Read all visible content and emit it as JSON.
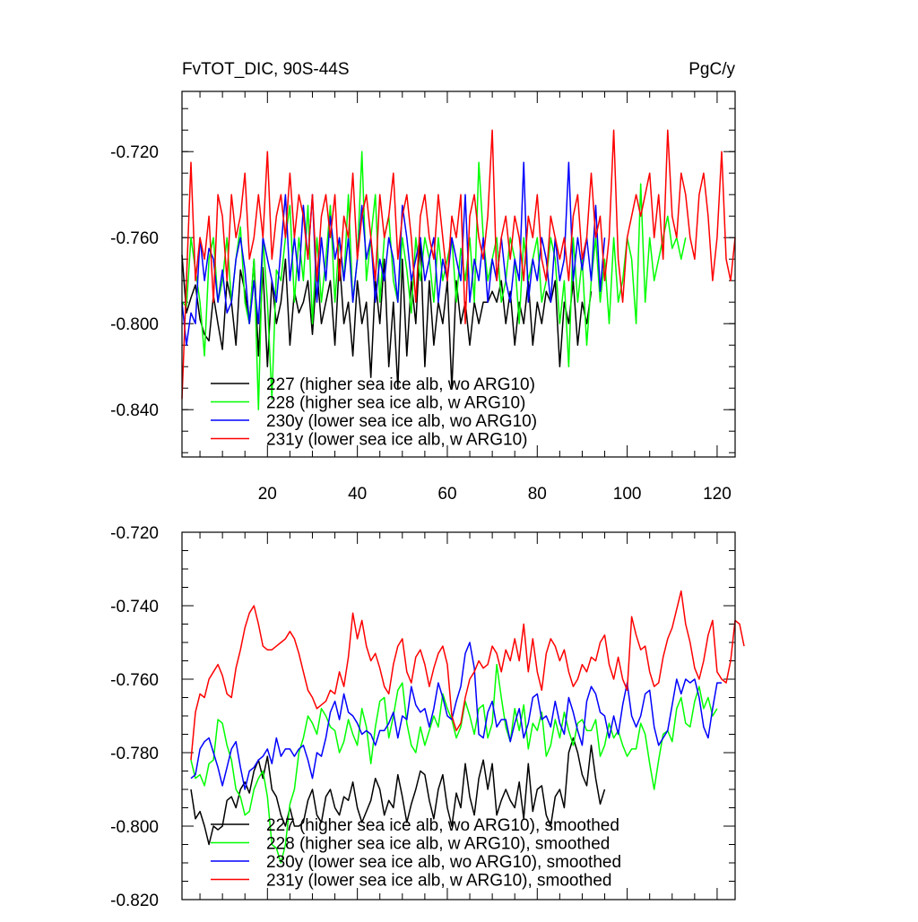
{
  "chart_data": [
    {
      "type": "line",
      "title_left": "FvTOT_DIC, 90S-44S",
      "title_right": "PgC/y",
      "xlim": [
        1,
        124
      ],
      "ylim": [
        -0.862,
        -0.692
      ],
      "yticks": [
        -0.84,
        -0.8,
        -0.76,
        -0.72
      ],
      "ytick_labels": [
        "-0.840",
        "-0.800",
        "-0.760",
        "-0.720"
      ],
      "xticks": [
        20,
        40,
        60,
        80,
        100,
        120
      ],
      "xtick_labels": [
        "20",
        "40",
        "60",
        "80",
        "100",
        "120"
      ],
      "series": [
        {
          "name": "227 (higher sea ice alb, wo ARG10)",
          "color": "#000000",
          "start": 1,
          "values": [
            -0.768,
            -0.795,
            -0.788,
            -0.782,
            -0.798,
            -0.805,
            -0.808,
            -0.787,
            -0.8,
            -0.812,
            -0.78,
            -0.79,
            -0.81,
            -0.775,
            -0.785,
            -0.8,
            -0.77,
            -0.815,
            -0.774,
            -0.82,
            -0.78,
            -0.8,
            -0.79,
            -0.77,
            -0.81,
            -0.785,
            -0.795,
            -0.79,
            -0.78,
            -0.805,
            -0.775,
            -0.8,
            -0.79,
            -0.78,
            -0.81,
            -0.77,
            -0.8,
            -0.79,
            -0.815,
            -0.78,
            -0.8,
            -0.79,
            -0.825,
            -0.78,
            -0.8,
            -0.77,
            -0.82,
            -0.79,
            -0.83,
            -0.77,
            -0.815,
            -0.78,
            -0.8,
            -0.76,
            -0.82,
            -0.78,
            -0.81,
            -0.79,
            -0.8,
            -0.78,
            -0.83,
            -0.78,
            -0.8,
            -0.79,
            -0.81,
            -0.79,
            -0.8,
            -0.79,
            -0.79,
            -0.785,
            -0.79,
            -0.78,
            -0.8,
            -0.785,
            -0.81,
            -0.79,
            -0.8,
            -0.78,
            -0.81,
            -0.79,
            -0.8,
            -0.785,
            -0.79,
            -0.78,
            -0.82,
            -0.79,
            -0.8,
            -0.78,
            -0.81,
            -0.79,
            -0.8,
            -0.785
          ]
        },
        {
          "name": "228 (higher sea ice alb, w ARG10)",
          "color": "#00ff00",
          "start": 1,
          "values": [
            -0.79,
            -0.792,
            -0.76,
            -0.775,
            -0.79,
            -0.815,
            -0.77,
            -0.76,
            -0.79,
            -0.78,
            -0.76,
            -0.79,
            -0.77,
            -0.755,
            -0.79,
            -0.8,
            -0.77,
            -0.84,
            -0.76,
            -0.79,
            -0.835,
            -0.775,
            -0.78,
            -0.76,
            -0.745,
            -0.79,
            -0.76,
            -0.78,
            -0.745,
            -0.8,
            -0.76,
            -0.79,
            -0.77,
            -0.745,
            -0.79,
            -0.76,
            -0.78,
            -0.74,
            -0.79,
            -0.77,
            -0.72,
            -0.78,
            -0.76,
            -0.74,
            -0.79,
            -0.76,
            -0.75,
            -0.78,
            -0.79,
            -0.76,
            -0.775,
            -0.795,
            -0.76,
            -0.78,
            -0.76,
            -0.77,
            -0.79,
            -0.76,
            -0.78,
            -0.77,
            -0.76,
            -0.79,
            -0.765,
            -0.78,
            -0.76,
            -0.79,
            -0.725,
            -0.76,
            -0.78,
            -0.77,
            -0.76,
            -0.79,
            -0.78,
            -0.76,
            -0.77,
            -0.8,
            -0.76,
            -0.78,
            -0.77,
            -0.76,
            -0.79,
            -0.78,
            -0.76,
            -0.77,
            -0.8,
            -0.78,
            -0.82,
            -0.76,
            -0.79,
            -0.77,
            -0.81,
            -0.78,
            -0.76,
            -0.79,
            -0.77,
            -0.8,
            -0.76,
            -0.79,
            -0.78,
            -0.76,
            -0.77,
            -0.8,
            -0.735,
            -0.79,
            -0.76,
            -0.78,
            -0.77,
            -0.76,
            -0.75,
            -0.765,
            -0.76,
            -0.77,
            -0.76
          ]
        },
        {
          "name": "230y (lower sea ice alb, wo ARG10)",
          "color": "#0000ff",
          "start": 1,
          "values": [
            -0.79,
            -0.81,
            -0.795,
            -0.8,
            -0.76,
            -0.78,
            -0.765,
            -0.77,
            -0.79,
            -0.775,
            -0.795,
            -0.79,
            -0.77,
            -0.76,
            -0.775,
            -0.8,
            -0.78,
            -0.8,
            -0.76,
            -0.77,
            -0.78,
            -0.79,
            -0.765,
            -0.74,
            -0.78,
            -0.76,
            -0.78,
            -0.745,
            -0.77,
            -0.74,
            -0.79,
            -0.76,
            -0.78,
            -0.75,
            -0.77,
            -0.76,
            -0.78,
            -0.76,
            -0.79,
            -0.77,
            -0.745,
            -0.77,
            -0.76,
            -0.79,
            -0.77,
            -0.78,
            -0.76,
            -0.77,
            -0.79,
            -0.745,
            -0.76,
            -0.78,
            -0.77,
            -0.76,
            -0.78,
            -0.77,
            -0.76,
            -0.79,
            -0.77,
            -0.78,
            -0.76,
            -0.77,
            -0.78,
            -0.74,
            -0.79,
            -0.77,
            -0.78,
            -0.76,
            -0.79,
            -0.77,
            -0.78,
            -0.76,
            -0.78,
            -0.79,
            -0.77,
            -0.78,
            -0.725,
            -0.79,
            -0.77,
            -0.78,
            -0.76,
            -0.77,
            -0.79,
            -0.76,
            -0.78,
            -0.77,
            -0.725,
            -0.78,
            -0.76,
            -0.775,
            -0.76,
            -0.78,
            -0.745,
            -0.785,
            -0.76
          ]
        },
        {
          "name": "231y (lower sea ice alb, w ARG10)",
          "color": "#ff0000",
          "start": 1,
          "values": [
            -0.835,
            -0.78,
            -0.725,
            -0.78,
            -0.76,
            -0.77,
            -0.75,
            -0.79,
            -0.74,
            -0.75,
            -0.78,
            -0.74,
            -0.76,
            -0.75,
            -0.73,
            -0.77,
            -0.76,
            -0.74,
            -0.76,
            -0.72,
            -0.77,
            -0.75,
            -0.74,
            -0.76,
            -0.73,
            -0.76,
            -0.74,
            -0.75,
            -0.77,
            -0.74,
            -0.78,
            -0.75,
            -0.74,
            -0.76,
            -0.74,
            -0.78,
            -0.75,
            -0.76,
            -0.73,
            -0.77,
            -0.75,
            -0.74,
            -0.76,
            -0.78,
            -0.74,
            -0.76,
            -0.75,
            -0.73,
            -0.77,
            -0.75,
            -0.74,
            -0.76,
            -0.79,
            -0.75,
            -0.74,
            -0.76,
            -0.77,
            -0.74,
            -0.76,
            -0.78,
            -0.75,
            -0.76,
            -0.74,
            -0.8,
            -0.75,
            -0.74,
            -0.76,
            -0.77,
            -0.75,
            -0.71,
            -0.78,
            -0.76,
            -0.75,
            -0.77,
            -0.75,
            -0.76,
            -0.78,
            -0.75,
            -0.76,
            -0.74,
            -0.77,
            -0.78,
            -0.75,
            -0.76,
            -0.77,
            -0.76,
            -0.78,
            -0.75,
            -0.74,
            -0.77,
            -0.76,
            -0.73,
            -0.76,
            -0.75,
            -0.78,
            -0.76,
            -0.71,
            -0.77,
            -0.79,
            -0.76,
            -0.75,
            -0.74,
            -0.75,
            -0.74,
            -0.73,
            -0.76,
            -0.74,
            -0.77,
            -0.71,
            -0.75,
            -0.76,
            -0.73,
            -0.74,
            -0.76,
            -0.77,
            -0.74,
            -0.73,
            -0.75,
            -0.78,
            -0.76,
            -0.72,
            -0.77,
            -0.78,
            -0.76
          ]
        }
      ]
    },
    {
      "type": "line",
      "xlim": [
        1,
        124
      ],
      "ylim": [
        -0.82,
        -0.72
      ],
      "yticks": [
        -0.82,
        -0.8,
        -0.78,
        -0.76,
        -0.74,
        -0.72
      ],
      "ytick_labels": [
        "-0.820",
        "-0.800",
        "-0.780",
        "-0.760",
        "-0.740",
        "-0.720"
      ],
      "xticks": [
        20,
        40,
        60,
        80,
        100,
        120
      ],
      "series": [
        {
          "name": "227 (higher sea ice alb, wo ARG10), smoothed",
          "color": "#000000",
          "start": 3,
          "values": [
            -0.79,
            -0.798,
            -0.796,
            -0.8,
            -0.805,
            -0.8,
            -0.801,
            -0.8,
            -0.793,
            -0.792,
            -0.795,
            -0.79,
            -0.788,
            -0.791,
            -0.785,
            -0.782,
            -0.787,
            -0.781,
            -0.79,
            -0.792,
            -0.797,
            -0.8,
            -0.795,
            -0.8,
            -0.8,
            -0.799,
            -0.793,
            -0.79,
            -0.797,
            -0.799,
            -0.792,
            -0.79,
            -0.795,
            -0.797,
            -0.792,
            -0.793,
            -0.788,
            -0.795,
            -0.799,
            -0.796,
            -0.793,
            -0.787,
            -0.79,
            -0.797,
            -0.793,
            -0.795,
            -0.786,
            -0.792,
            -0.799,
            -0.794,
            -0.79,
            -0.785,
            -0.786,
            -0.793,
            -0.798,
            -0.79,
            -0.786,
            -0.795,
            -0.8,
            -0.791,
            -0.795,
            -0.783,
            -0.792,
            -0.797,
            -0.787,
            -0.782,
            -0.79,
            -0.783,
            -0.797,
            -0.793,
            -0.79,
            -0.793,
            -0.795,
            -0.788,
            -0.798,
            -0.783,
            -0.796,
            -0.79,
            -0.789,
            -0.797,
            -0.8,
            -0.792,
            -0.79,
            -0.795,
            -0.78,
            -0.776,
            -0.78,
            -0.786,
            -0.789,
            -0.778,
            -0.787,
            -0.794,
            -0.79
          ]
        },
        {
          "name": "228 (higher sea ice alb, w ARG10), smoothed",
          "color": "#00ff00",
          "start": 3,
          "values": [
            -0.782,
            -0.787,
            -0.786,
            -0.789,
            -0.783,
            -0.782,
            -0.771,
            -0.772,
            -0.778,
            -0.782,
            -0.79,
            -0.792,
            -0.797,
            -0.796,
            -0.79,
            -0.787,
            -0.785,
            -0.792,
            -0.805,
            -0.806,
            -0.81,
            -0.805,
            -0.794,
            -0.79,
            -0.78,
            -0.776,
            -0.77,
            -0.772,
            -0.775,
            -0.768,
            -0.77,
            -0.773,
            -0.774,
            -0.78,
            -0.777,
            -0.771,
            -0.775,
            -0.778,
            -0.768,
            -0.773,
            -0.783,
            -0.773,
            -0.766,
            -0.765,
            -0.776,
            -0.77,
            -0.763,
            -0.761,
            -0.772,
            -0.778,
            -0.78,
            -0.773,
            -0.778,
            -0.774,
            -0.77,
            -0.773,
            -0.764,
            -0.768,
            -0.771,
            -0.776,
            -0.773,
            -0.766,
            -0.77,
            -0.775,
            -0.768,
            -0.767,
            -0.776,
            -0.772,
            -0.756,
            -0.765,
            -0.773,
            -0.777,
            -0.768,
            -0.774,
            -0.767,
            -0.779,
            -0.772,
            -0.774,
            -0.769,
            -0.781,
            -0.778,
            -0.771,
            -0.776,
            -0.769,
            -0.774,
            -0.778,
            -0.772,
            -0.771,
            -0.774,
            -0.774,
            -0.771,
            -0.781,
            -0.778,
            -0.772,
            -0.776,
            -0.774,
            -0.778,
            -0.781,
            -0.779,
            -0.779,
            -0.772,
            -0.775,
            -0.783,
            -0.79,
            -0.782,
            -0.775,
            -0.774,
            -0.777,
            -0.768,
            -0.765,
            -0.772,
            -0.773,
            -0.766,
            -0.762,
            -0.768,
            -0.765,
            -0.77,
            -0.768
          ]
        },
        {
          "name": "230y (lower sea ice alb, wo ARG10), smoothed",
          "color": "#0000ff",
          "start": 3,
          "values": [
            -0.787,
            -0.786,
            -0.779,
            -0.777,
            -0.776,
            -0.78,
            -0.784,
            -0.789,
            -0.784,
            -0.779,
            -0.777,
            -0.784,
            -0.79,
            -0.785,
            -0.784,
            -0.782,
            -0.781,
            -0.779,
            -0.783,
            -0.776,
            -0.781,
            -0.779,
            -0.779,
            -0.781,
            -0.779,
            -0.778,
            -0.782,
            -0.787,
            -0.78,
            -0.781,
            -0.776,
            -0.769,
            -0.766,
            -0.771,
            -0.764,
            -0.769,
            -0.77,
            -0.772,
            -0.775,
            -0.774,
            -0.775,
            -0.778,
            -0.774,
            -0.774,
            -0.772,
            -0.769,
            -0.776,
            -0.77,
            -0.771,
            -0.762,
            -0.767,
            -0.769,
            -0.768,
            -0.773,
            -0.768,
            -0.761,
            -0.765,
            -0.77,
            -0.771,
            -0.766,
            -0.762,
            -0.753,
            -0.75,
            -0.757,
            -0.775,
            -0.776,
            -0.769,
            -0.766,
            -0.773,
            -0.771,
            -0.771,
            -0.777,
            -0.772,
            -0.768,
            -0.776,
            -0.772,
            -0.765,
            -0.764,
            -0.771,
            -0.77,
            -0.773,
            -0.766,
            -0.772,
            -0.775,
            -0.765,
            -0.769,
            -0.774,
            -0.778,
            -0.766,
            -0.762,
            -0.764,
            -0.769,
            -0.77,
            -0.776,
            -0.77,
            -0.775,
            -0.767,
            -0.761,
            -0.77,
            -0.773,
            -0.77,
            -0.764,
            -0.763,
            -0.773,
            -0.778,
            -0.776,
            -0.774,
            -0.767,
            -0.76,
            -0.764,
            -0.76,
            -0.761,
            -0.76,
            -0.765,
            -0.773,
            -0.776,
            -0.768,
            -0.761,
            -0.761
          ]
        },
        {
          "name": "231y (lower sea ice alb, w ARG10), smoothed",
          "color": "#ff0000",
          "start": 3,
          "values": [
            -0.782,
            -0.769,
            -0.764,
            -0.765,
            -0.76,
            -0.758,
            -0.756,
            -0.759,
            -0.764,
            -0.765,
            -0.757,
            -0.752,
            -0.746,
            -0.742,
            -0.74,
            -0.745,
            -0.751,
            -0.752,
            -0.752,
            -0.751,
            -0.75,
            -0.749,
            -0.747,
            -0.749,
            -0.753,
            -0.758,
            -0.763,
            -0.765,
            -0.768,
            -0.767,
            -0.766,
            -0.763,
            -0.764,
            -0.758,
            -0.762,
            -0.754,
            -0.742,
            -0.749,
            -0.744,
            -0.751,
            -0.755,
            -0.753,
            -0.757,
            -0.762,
            -0.764,
            -0.756,
            -0.751,
            -0.749,
            -0.758,
            -0.761,
            -0.754,
            -0.752,
            -0.756,
            -0.762,
            -0.757,
            -0.753,
            -0.751,
            -0.756,
            -0.77,
            -0.774,
            -0.772,
            -0.765,
            -0.76,
            -0.758,
            -0.755,
            -0.757,
            -0.756,
            -0.751,
            -0.753,
            -0.758,
            -0.752,
            -0.755,
            -0.749,
            -0.755,
            -0.745,
            -0.758,
            -0.749,
            -0.758,
            -0.763,
            -0.753,
            -0.749,
            -0.751,
            -0.755,
            -0.752,
            -0.758,
            -0.762,
            -0.76,
            -0.756,
            -0.758,
            -0.754,
            -0.755,
            -0.75,
            -0.748,
            -0.756,
            -0.76,
            -0.754,
            -0.76,
            -0.763,
            -0.743,
            -0.748,
            -0.752,
            -0.751,
            -0.758,
            -0.762,
            -0.761,
            -0.754,
            -0.749,
            -0.746,
            -0.741,
            -0.736,
            -0.745,
            -0.75,
            -0.757,
            -0.76,
            -0.755,
            -0.748,
            -0.744,
            -0.758,
            -0.76,
            -0.761,
            -0.755,
            -0.744,
            -0.745,
            -0.751
          ]
        }
      ]
    }
  ]
}
